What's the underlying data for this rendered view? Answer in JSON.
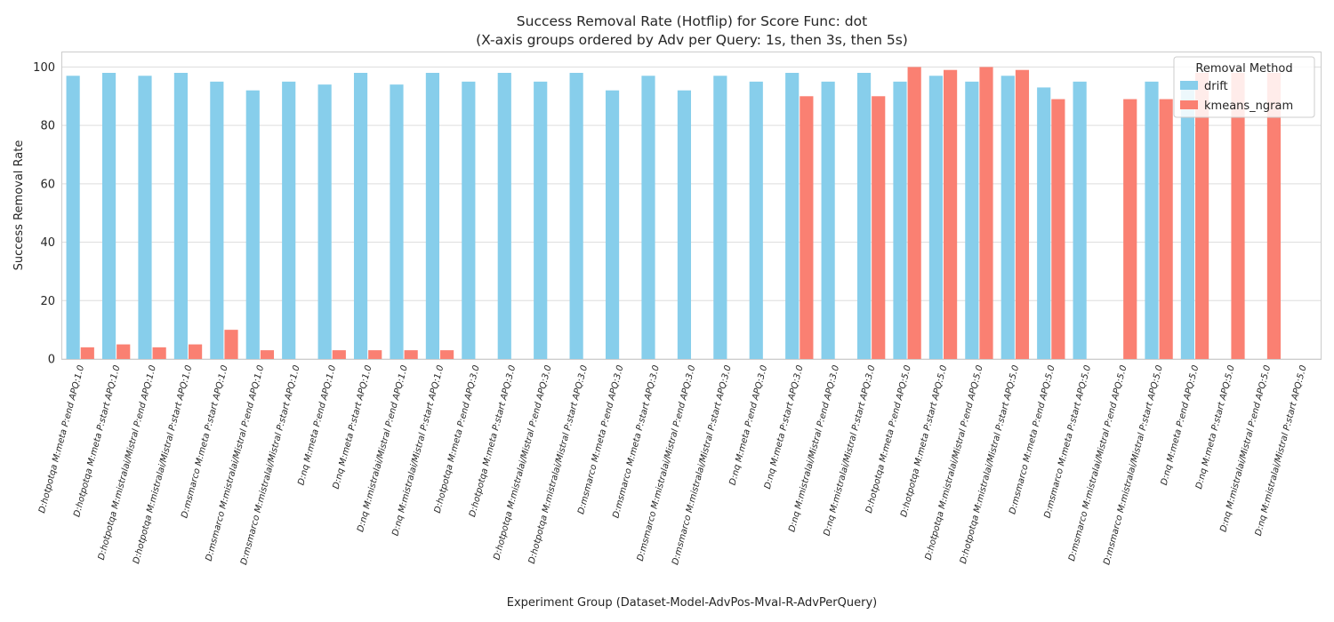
{
  "chart_data": {
    "type": "bar",
    "title": "Success Removal Rate (Hotflip) for Score Func: dot",
    "subtitle": "(X-axis groups ordered by Adv per Query: 1s, then 3s, then 5s)",
    "xlabel": "Experiment Group (Dataset-Model-AdvPos-Mval-R-AdvPerQuery)",
    "ylabel": "Success Removal Rate",
    "ylim": [
      0,
      105
    ],
    "yticks": [
      "0",
      "20",
      "40",
      "60",
      "80",
      "100"
    ],
    "grid": true,
    "legend": {
      "title": "Removal Method",
      "placement": "top-right"
    },
    "categories": [
      "D:hotpotqa M:meta P:end APQ:1.0",
      "D:hotpotqa M:meta P:start APQ:1.0",
      "D:hotpotqa M:mistralai/Mistral P:end APQ:1.0",
      "D:hotpotqa M:mistralai/Mistral P:start APQ:1.0",
      "D:msmarco M:meta P:start APQ:1.0",
      "D:msmarco M:mistralai/Mistral P:end APQ:1.0",
      "D:msmarco M:mistralai/Mistral P:start APQ:1.0",
      "D:nq M:meta P:end APQ:1.0",
      "D:nq M:meta P:start APQ:1.0",
      "D:nq M:mistralai/Mistral P:end APQ:1.0",
      "D:nq M:mistralai/Mistral P:start APQ:1.0",
      "D:hotpotqa M:meta P:end APQ:3.0",
      "D:hotpotqa M:meta P:start APQ:3.0",
      "D:hotpotqa M:mistralai/Mistral P:end APQ:3.0",
      "D:hotpotqa M:mistralai/Mistral P:start APQ:3.0",
      "D:msmarco M:meta P:end APQ:3.0",
      "D:msmarco M:meta P:start APQ:3.0",
      "D:msmarco M:mistralai/Mistral P:end APQ:3.0",
      "D:msmarco M:mistralai/Mistral P:start APQ:3.0",
      "D:nq M:meta P:end APQ:3.0",
      "D:nq M:meta P:start APQ:3.0",
      "D:nq M:mistralai/Mistral P:end APQ:3.0",
      "D:nq M:mistralai/Mistral P:start APQ:3.0",
      "D:hotpotqa M:meta P:end APQ:5.0",
      "D:hotpotqa M:meta P:start APQ:5.0",
      "D:hotpotqa M:mistralai/Mistral P:end APQ:5.0",
      "D:hotpotqa M:mistralai/Mistral P:start APQ:5.0",
      "D:msmarco M:meta P:end APQ:5.0",
      "D:msmarco M:meta P:start APQ:5.0",
      "D:msmarco M:mistralai/Mistral P:end APQ:5.0",
      "D:msmarco M:mistralai/Mistral P:start APQ:5.0",
      "D:nq M:meta P:end APQ:5.0",
      "D:nq M:meta P:start APQ:5.0",
      "D:nq M:mistralai/Mistral P:end APQ:5.0",
      "D:nq M:mistralai/Mistral P:start APQ:5.0"
    ],
    "series": [
      {
        "name": "drift",
        "color": "#87CEEB",
        "values": [
          97,
          98,
          97,
          98,
          95,
          92,
          95,
          94,
          98,
          94,
          98,
          95,
          98,
          95,
          98,
          92,
          97,
          92,
          97,
          95,
          98,
          95,
          98,
          95,
          97,
          95,
          97,
          93,
          95,
          null,
          95,
          95,
          null,
          null,
          null
        ]
      },
      {
        "name": "kmeans_ngram",
        "color": "#FA8072",
        "values": [
          4,
          5,
          4,
          5,
          10,
          3,
          null,
          3,
          3,
          3,
          3,
          null,
          null,
          null,
          null,
          null,
          null,
          null,
          null,
          null,
          90,
          null,
          90,
          100,
          99,
          100,
          99,
          89,
          null,
          89,
          89,
          98,
          98,
          98,
          null
        ]
      }
    ]
  }
}
